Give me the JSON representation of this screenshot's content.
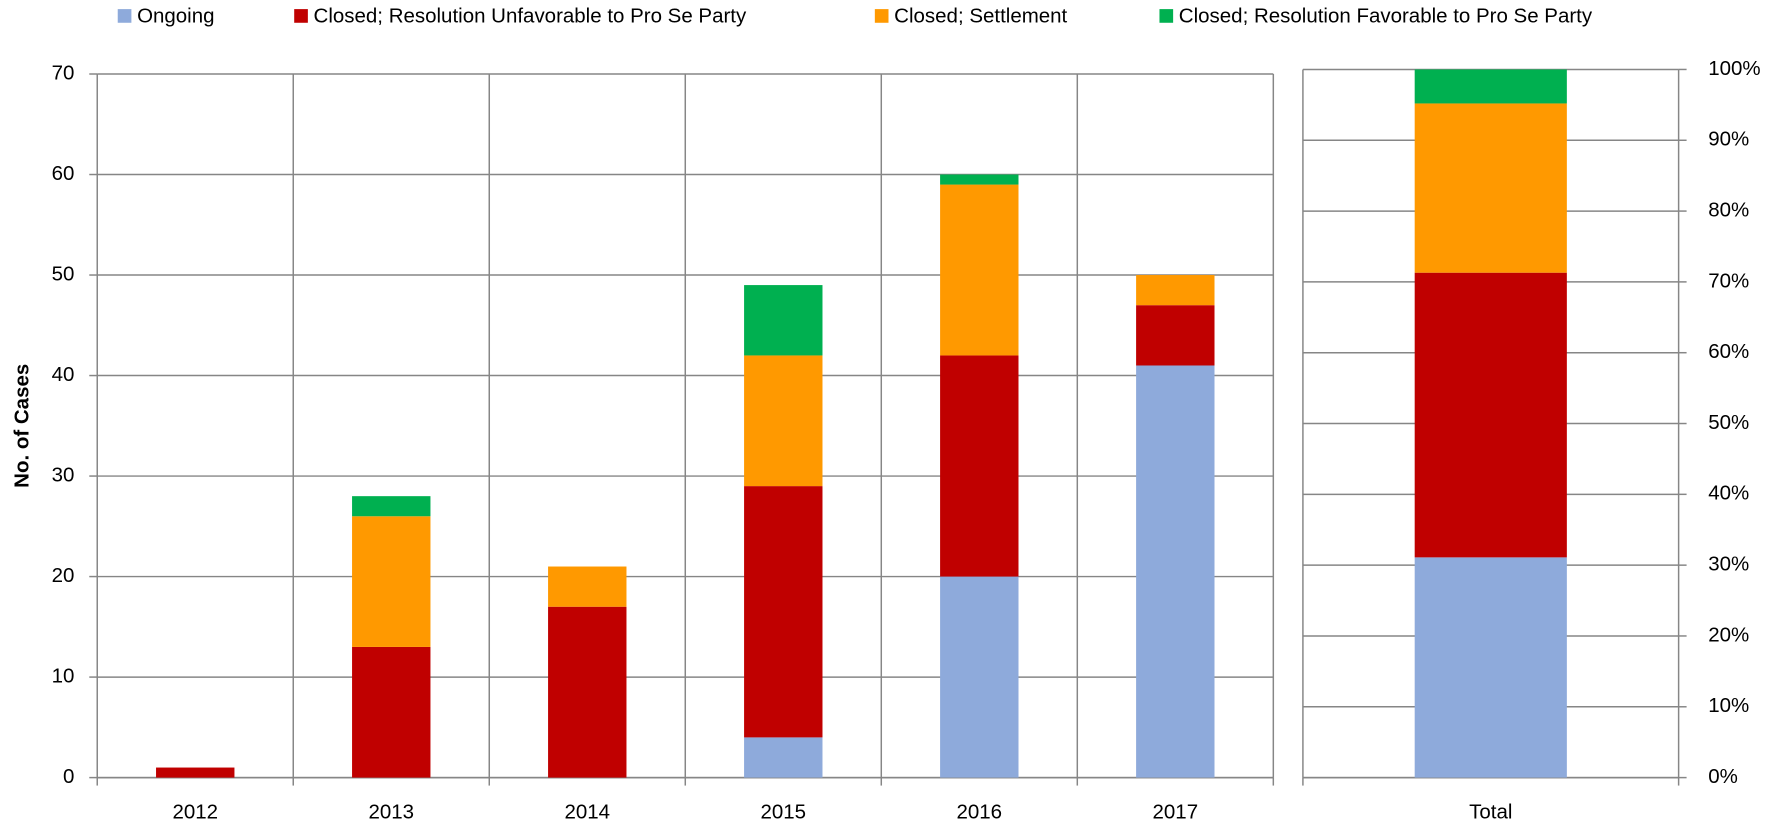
{
  "chart_data": [
    {
      "type": "bar",
      "stacked": true,
      "legend": "top",
      "ylabel": "No. of Cases",
      "categories": [
        "2012",
        "2013",
        "2014",
        "2015",
        "2016",
        "2017"
      ],
      "series": [
        {
          "name": "Ongoing",
          "color": "#8eaadb",
          "values": [
            0,
            0,
            0,
            4,
            20,
            41
          ]
        },
        {
          "name": "Closed; Resolution Unfavorable to Pro Se Party",
          "color": "#c00000",
          "values": [
            1,
            13,
            17,
            25,
            22,
            6
          ]
        },
        {
          "name": "Closed; Settlement",
          "color": "#ff9900",
          "values": [
            0,
            13,
            4,
            13,
            17,
            3
          ]
        },
        {
          "name": "Closed; Resolution Favorable to Pro Se Party",
          "color": "#00b050",
          "values": [
            0,
            2,
            0,
            7,
            1,
            0
          ]
        }
      ],
      "ylim": [
        0,
        70
      ],
      "yticks": [
        0,
        10,
        20,
        30,
        40,
        50,
        60,
        70
      ],
      "grid": true
    },
    {
      "type": "bar",
      "stacked": true,
      "categories": [
        "Total"
      ],
      "series": [
        {
          "color": "#8eaadb",
          "values": [
            31.1
          ]
        },
        {
          "color": "#c00000",
          "values": [
            40.2
          ]
        },
        {
          "color": "#ff9900",
          "values": [
            23.9
          ]
        },
        {
          "color": "#00b050",
          "values": [
            4.8
          ]
        }
      ],
      "ylim": [
        0,
        100
      ],
      "yticks": [
        {
          "value": 0,
          "label": "0%"
        },
        {
          "value": 10,
          "label": "10%"
        },
        {
          "value": 20,
          "label": "20%"
        },
        {
          "value": 30,
          "label": "30%"
        },
        {
          "value": 40,
          "label": "40%"
        },
        {
          "value": 50,
          "label": "50%"
        },
        {
          "value": 60,
          "label": "60%"
        },
        {
          "value": 70,
          "label": "70%"
        },
        {
          "value": 80,
          "label": "80%"
        },
        {
          "value": 90,
          "label": "90%"
        },
        {
          "value": 100,
          "label": "100%"
        }
      ],
      "grid": true
    }
  ]
}
